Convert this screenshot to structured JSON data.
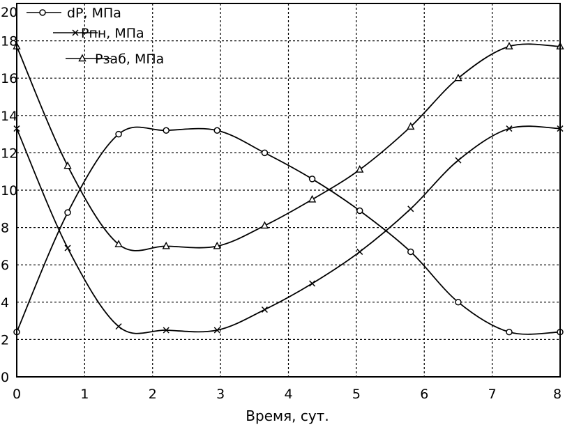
{
  "chart_data": {
    "type": "line",
    "title": "",
    "xlabel": "Время, сут.",
    "ylabel": "",
    "xlim": [
      0,
      8
    ],
    "ylim": [
      0,
      20
    ],
    "xticks": [
      "0",
      "1",
      "2",
      "3",
      "4",
      "5",
      "6",
      "7",
      "8"
    ],
    "yticks": [
      "0",
      "2",
      "4",
      "6",
      "8",
      "10",
      "12",
      "14",
      "16",
      "18",
      "20"
    ],
    "grid": true,
    "legend_position": "top-left",
    "series": [
      {
        "name": "dP, МПа",
        "marker": "circle",
        "x": [
          0,
          0.75,
          1.5,
          2.2,
          2.95,
          3.65,
          4.35,
          5.05,
          5.8,
          6.5,
          7.25,
          8
        ],
        "y": [
          2.4,
          8.8,
          13.0,
          13.2,
          13.2,
          12.0,
          10.6,
          8.9,
          6.7,
          4.0,
          2.4,
          2.4
        ]
      },
      {
        "name": "Рпн, МПа",
        "marker": "cross",
        "x": [
          0,
          0.75,
          1.5,
          2.2,
          2.95,
          3.65,
          4.35,
          5.05,
          5.8,
          6.5,
          7.25,
          8
        ],
        "y": [
          13.3,
          6.9,
          2.7,
          2.5,
          2.5,
          3.6,
          5.0,
          6.7,
          9.0,
          11.6,
          13.3,
          13.3
        ]
      },
      {
        "name": "Рзаб, МПа",
        "marker": "triangle",
        "x": [
          0,
          0.75,
          1.5,
          2.2,
          2.95,
          3.65,
          4.35,
          5.05,
          5.8,
          6.5,
          7.25,
          8
        ],
        "y": [
          17.7,
          11.3,
          7.1,
          7.0,
          7.0,
          8.1,
          9.5,
          11.1,
          13.4,
          16.0,
          17.7,
          17.7
        ]
      }
    ]
  }
}
